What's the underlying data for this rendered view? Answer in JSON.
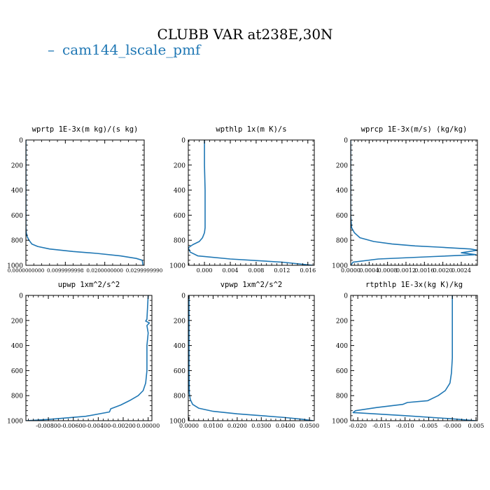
{
  "figure": {
    "title": "CLUBB VAR at238E,30N",
    "legend": {
      "label": "cam144_lscale_pmf",
      "symbol": "–",
      "color": "#1f77b4",
      "placement": "top-left"
    }
  },
  "colors": {
    "line": "#1f77b4",
    "axis": "#000000",
    "background": "#ffffff"
  },
  "chart_data": [
    {
      "type": "line",
      "title": "wprtp  1E-3x(m kg)/(s kg)",
      "xlabel": "",
      "ylabel": "",
      "xlim": [
        0,
        0.03
      ],
      "ylim": [
        1000,
        0
      ],
      "xticks": [
        0.0,
        0.01,
        0.02,
        0.03
      ],
      "xtick_labels": [
        "0.0000000000",
        "0.0099999998",
        "0.0200000000",
        "0.0299999990"
      ],
      "yticks": [
        0,
        200,
        400,
        600,
        800,
        1000
      ],
      "ytick_labels": [
        "0",
        "200",
        "400",
        "600",
        "800",
        "1000"
      ],
      "series": [
        {
          "name": "cam144_lscale_pmf",
          "x": [
            0,
            0,
            0,
            0,
            0,
            0.0001,
            0.0003,
            0.0008,
            0.0015,
            0.003,
            0.006,
            0.012,
            0.018,
            0.024,
            0.028,
            0.0295,
            0.0297
          ],
          "y": [
            0,
            200,
            400,
            600,
            700,
            740,
            770,
            800,
            830,
            850,
            870,
            890,
            905,
            925,
            945,
            960,
            1000
          ]
        }
      ]
    },
    {
      "type": "line",
      "title": "wpthlp  1x(m K)/s",
      "xlabel": "",
      "ylabel": "",
      "xlim": [
        -0.0025,
        0.017
      ],
      "ylim": [
        1000,
        0
      ],
      "xticks": [
        0.0,
        0.004,
        0.008,
        0.012,
        0.016
      ],
      "xtick_labels": [
        "0.000",
        "0.004",
        "0.008",
        "0.012",
        "0.016"
      ],
      "yticks": [
        0,
        200,
        400,
        600,
        800,
        1000
      ],
      "ytick_labels": [
        "0",
        "200",
        "400",
        "600",
        "800",
        "1000"
      ],
      "series": [
        {
          "name": "cam144_lscale_pmf",
          "x": [
            0.0,
            0.0,
            0.0001,
            0.0001,
            0.0001,
            0.0,
            -0.0003,
            -0.0008,
            -0.0018,
            -0.0025,
            -0.0022,
            -0.001,
            0.004,
            0.012,
            0.0168
          ],
          "y": [
            0,
            200,
            400,
            600,
            700,
            740,
            780,
            810,
            835,
            860,
            895,
            925,
            950,
            975,
            1000
          ]
        }
      ]
    },
    {
      "type": "line",
      "title": "wprcp  1E-3x(m/s) (kg/kg)",
      "xlabel": "",
      "ylabel": "",
      "xlim": [
        0,
        0.00275
      ],
      "ylim": [
        1000,
        0
      ],
      "xticks": [
        0.0,
        0.0004,
        0.0008,
        0.0012,
        0.0016,
        0.002,
        0.0024
      ],
      "xtick_labels": [
        "0.0000",
        "0.0004",
        "0.0008",
        "0.0012",
        "0.0016",
        "0.0020",
        "0.0024"
      ],
      "yticks": [
        0,
        200,
        400,
        600,
        800,
        1000
      ],
      "ytick_labels": [
        "0",
        "200",
        "400",
        "600",
        "800",
        "1000"
      ],
      "series": [
        {
          "name": "cam144_lscale_pmf",
          "x": [
            0,
            0,
            0,
            0,
            2e-05,
            8e-05,
            0.0002,
            0.0005,
            0.0009,
            0.0014,
            0.0019,
            0.0026,
            0.00275,
            0.0024,
            0.00272,
            0.0018,
            0.0006,
            5e-05,
            0.0
          ],
          "y": [
            0,
            200,
            400,
            600,
            700,
            740,
            780,
            810,
            830,
            845,
            855,
            870,
            880,
            900,
            915,
            930,
            950,
            975,
            1000
          ]
        }
      ]
    },
    {
      "type": "line",
      "title": "upwp  1xm^2/s^2",
      "xlabel": "",
      "ylabel": "",
      "xlim": [
        -0.0098,
        0.0003
      ],
      "ylim": [
        1000,
        0
      ],
      "xticks": [
        -0.008,
        -0.006,
        -0.004,
        -0.002,
        0.0
      ],
      "xtick_labels": [
        "-0.00800",
        "-0.00600",
        "-0.00400",
        "-0.00200",
        "0.00000"
      ],
      "yticks": [
        0,
        200,
        400,
        600,
        800,
        1000
      ],
      "ytick_labels": [
        "0",
        "200",
        "400",
        "600",
        "800",
        "1000"
      ],
      "series": [
        {
          "name": "cam144_lscale_pmf",
          "x": [
            0.0,
            -0.0001,
            -0.0002,
            0.0001,
            -0.0001,
            0.0,
            -0.0001,
            -0.0001,
            -0.0002,
            -0.0004,
            -0.0008,
            -0.0015,
            -0.0022,
            -0.003,
            -0.0031,
            -0.005,
            -0.008,
            -0.0098
          ],
          "y": [
            0,
            190,
            205,
            220,
            240,
            300,
            400,
            600,
            700,
            760,
            800,
            840,
            875,
            905,
            930,
            965,
            990,
            1000
          ]
        }
      ]
    },
    {
      "type": "line",
      "title": "vpwp  1xm^2/s^2",
      "xlabel": "",
      "ylabel": "",
      "xlim": [
        -0.0003,
        0.052
      ],
      "ylim": [
        1000,
        0
      ],
      "xticks": [
        0.0,
        0.01,
        0.02,
        0.03,
        0.04,
        0.05
      ],
      "xtick_labels": [
        "0.0000",
        "0.0100",
        "0.0200",
        "0.0300",
        "0.0400",
        "0.0500"
      ],
      "yticks": [
        0,
        200,
        400,
        600,
        800,
        1000
      ],
      "ytick_labels": [
        "0",
        "200",
        "400",
        "600",
        "800",
        "1000"
      ],
      "series": [
        {
          "name": "cam144_lscale_pmf",
          "x": [
            0,
            0,
            0,
            0,
            0.0001,
            0.0005,
            0.0015,
            0.004,
            0.01,
            0.02,
            0.03,
            0.04,
            0.047,
            0.0515
          ],
          "y": [
            0,
            200,
            400,
            600,
            780,
            830,
            870,
            900,
            925,
            945,
            960,
            975,
            988,
            1000
          ]
        }
      ]
    },
    {
      "type": "line",
      "title": "rtpthlp  1E-3x(kg K)/kg",
      "xlabel": "",
      "ylabel": "",
      "xlim": [
        -0.0215,
        0.0053
      ],
      "ylim": [
        1000,
        0
      ],
      "xticks": [
        -0.02,
        -0.015,
        -0.01,
        -0.005,
        0.0,
        0.005
      ],
      "xtick_labels": [
        "-0.020",
        "-0.015",
        "-0.010",
        "-0.005",
        "-0.000",
        "0.005"
      ],
      "yticks": [
        0,
        200,
        400,
        600,
        800,
        1000
      ],
      "ytick_labels": [
        "0",
        "200",
        "400",
        "600",
        "800",
        "1000"
      ],
      "series": [
        {
          "name": "cam144_lscale_pmf",
          "x": [
            0.0,
            0.0,
            0.0,
            -0.0002,
            -0.0005,
            -0.0015,
            -0.003,
            -0.0052,
            -0.0095,
            -0.0105,
            -0.016,
            -0.0205,
            -0.021,
            -0.01,
            0.0,
            0.005
          ],
          "y": [
            0,
            200,
            500,
            620,
            700,
            760,
            800,
            840,
            855,
            870,
            895,
            920,
            935,
            960,
            985,
            1000
          ]
        }
      ]
    }
  ]
}
